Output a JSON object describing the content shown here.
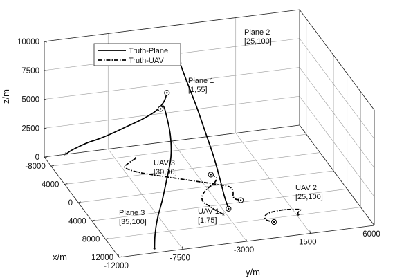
{
  "chart_data": {
    "type": "line3d",
    "xlabel": "x/m",
    "ylabel": "y/m",
    "zlabel": "z/m",
    "x_ticks": [
      "-8000",
      "-4000",
      "0",
      "4000",
      "8000",
      "12000"
    ],
    "y_ticks": [
      "-12000",
      "-7500",
      "-3000",
      "1500",
      "6000"
    ],
    "z_ticks": [
      "0",
      "2500",
      "5000",
      "7500",
      "10000"
    ],
    "xlim": [
      -10000,
      12000
    ],
    "ylim": [
      -12000,
      6000
    ],
    "zlim": [
      0,
      10000
    ],
    "grid": true,
    "legend": {
      "placement": "top-left",
      "entries": [
        {
          "label": "Truth-Plane",
          "style": "solid"
        },
        {
          "label": "Truth-UAV",
          "style": "dashdot"
        }
      ]
    },
    "series": [
      {
        "name": "Plane 1",
        "label_lines": [
          "Plane 1",
          "[1,55]"
        ],
        "kind": "Truth-Plane",
        "points": [
          [
            -10000,
            -10500,
            0
          ],
          [
            -9500,
            -10200,
            500
          ],
          [
            -9000,
            -9700,
            1000
          ],
          [
            -8600,
            -9200,
            1400
          ],
          [
            -8200,
            -8600,
            1750
          ],
          [
            -7700,
            -7900,
            2250
          ],
          [
            -7000,
            -7000,
            3000
          ],
          [
            -6300,
            -6000,
            3800
          ],
          [
            -5700,
            -5200,
            4600
          ],
          [
            -5300,
            -4700,
            5500
          ],
          [
            -5200,
            -4500,
            6300
          ]
        ]
      },
      {
        "name": "Plane 2",
        "label_lines": [
          "Plane 2",
          "[25,100]"
        ],
        "kind": "Truth-Plane",
        "points": [
          [
            -6300,
            -3300,
            8200
          ],
          [
            -5000,
            -3100,
            7000
          ],
          [
            -3000,
            -2900,
            5600
          ],
          [
            -1000,
            -2800,
            4300
          ],
          [
            1000,
            -2700,
            3000
          ],
          [
            2500,
            -2650,
            1800
          ],
          [
            3800,
            -2600,
            600
          ],
          [
            5000,
            -2600,
            0
          ]
        ]
      },
      {
        "name": "Plane 3",
        "label_lines": [
          "Plane 3",
          "[35,100]"
        ],
        "kind": "Truth-Plane",
        "points": [
          [
            11200,
            -9300,
            0
          ],
          [
            10500,
            -9100,
            900
          ],
          [
            9500,
            -8700,
            1800
          ],
          [
            8000,
            -8000,
            2700
          ],
          [
            6000,
            -7200,
            3600
          ],
          [
            3500,
            -6300,
            4500
          ],
          [
            800,
            -5700,
            5200
          ],
          [
            -2000,
            -5300,
            5700
          ],
          [
            -3300,
            -5200,
            6000
          ],
          [
            -3300,
            -5400,
            5800
          ]
        ]
      },
      {
        "name": "UAV 1",
        "label_lines": [
          "UAV 1",
          "[1,75]"
        ],
        "kind": "Truth-UAV",
        "points": [
          [
            6000,
            -3200,
            0
          ],
          [
            5000,
            -3500,
            0
          ],
          [
            4000,
            -3700,
            0
          ],
          [
            3000,
            -3900,
            0
          ],
          [
            1800,
            -3700,
            0
          ],
          [
            600,
            -3100,
            0
          ],
          [
            -500,
            -2300,
            0
          ],
          [
            -1500,
            -1900,
            0
          ],
          [
            -2300,
            -2100,
            0
          ]
        ]
      },
      {
        "name": "UAV 2",
        "label_lines": [
          "UAV 2",
          "[25,100]"
        ],
        "kind": "Truth-UAV",
        "points": [
          [
            8000,
            1600,
            0
          ],
          [
            7500,
            1700,
            0
          ],
          [
            7000,
            2000,
            0
          ],
          [
            6800,
            1700,
            0
          ],
          [
            6600,
            900,
            0
          ],
          [
            6800,
            -100,
            0
          ],
          [
            7400,
            -600,
            0
          ],
          [
            8200,
            -700,
            0
          ],
          [
            8800,
            -300,
            0
          ]
        ]
      },
      {
        "name": "UAV 3",
        "label_lines": [
          "UAV 3",
          "[30,90]"
        ],
        "kind": "Truth-UAV",
        "points": [
          [
            -7400,
            -6200,
            0
          ],
          [
            -6600,
            -6900,
            0
          ],
          [
            -5800,
            -7300,
            0
          ],
          [
            -4400,
            -6500,
            0
          ],
          [
            -2400,
            -4500,
            0
          ],
          [
            -400,
            -2400,
            0
          ],
          [
            600,
            -1500,
            0
          ],
          [
            1700,
            -1500,
            0
          ],
          [
            2600,
            -1700,
            0
          ],
          [
            3200,
            -1700,
            0
          ],
          [
            3600,
            -1400,
            0
          ]
        ]
      }
    ]
  }
}
